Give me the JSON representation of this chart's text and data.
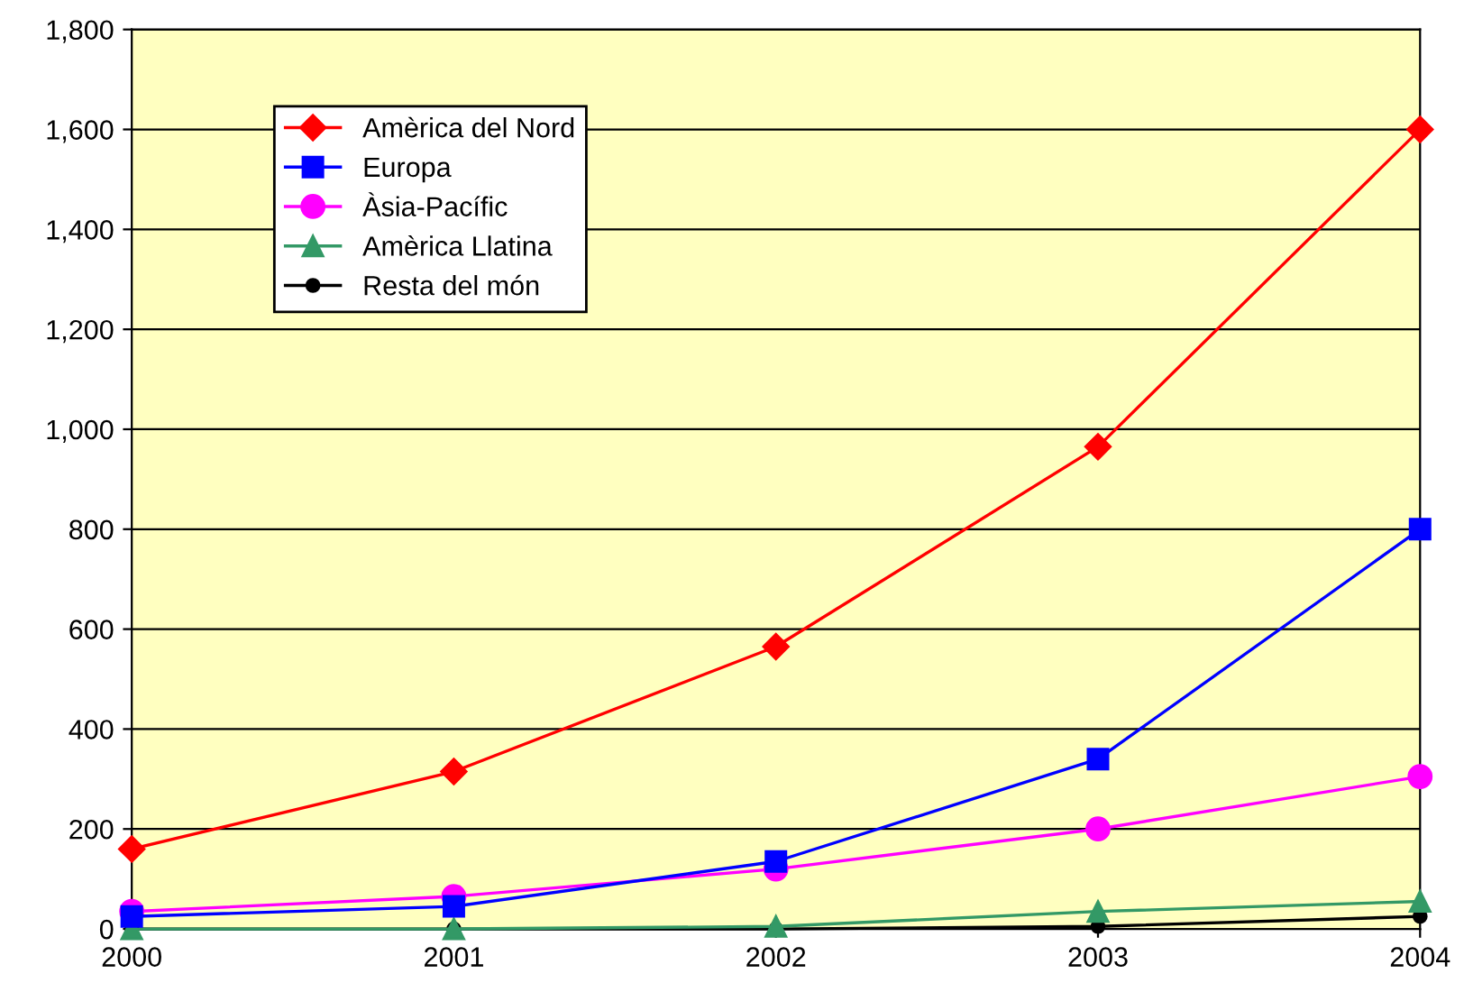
{
  "chart_data": {
    "type": "line",
    "categories": [
      "2000",
      "2001",
      "2002",
      "2003",
      "2004"
    ],
    "series": [
      {
        "name": "Amèrica del Nord",
        "color": "#ff0000",
        "marker": "diamond",
        "values": [
          160,
          315,
          565,
          965,
          1600
        ]
      },
      {
        "name": "Europa",
        "color": "#0000ff",
        "marker": "square",
        "values": [
          25,
          45,
          135,
          340,
          800
        ]
      },
      {
        "name": "Àsia-Pacífic",
        "color": "#ff00ff",
        "marker": "circle",
        "values": [
          35,
          65,
          120,
          200,
          305
        ]
      },
      {
        "name": "Amèrica Llatina",
        "color": "#339966",
        "marker": "triangle",
        "values": [
          0,
          0,
          5,
          35,
          55
        ]
      },
      {
        "name": "Resta del món",
        "color": "#000000",
        "marker": "circle",
        "values": [
          0,
          0,
          0,
          5,
          25
        ]
      }
    ],
    "ylim": [
      0,
      1800
    ],
    "yticks": [
      {
        "value": 0,
        "label": "0"
      },
      {
        "value": 200,
        "label": "200"
      },
      {
        "value": 400,
        "label": "400"
      },
      {
        "value": 600,
        "label": "600"
      },
      {
        "value": 800,
        "label": "800"
      },
      {
        "value": 1000,
        "label": "1,000"
      },
      {
        "value": 1200,
        "label": "1,200"
      },
      {
        "value": 1400,
        "label": "1,400"
      },
      {
        "value": 1600,
        "label": "1,600"
      },
      {
        "value": 1800,
        "label": "1,800"
      }
    ],
    "grid": "y",
    "legend": "top left"
  }
}
